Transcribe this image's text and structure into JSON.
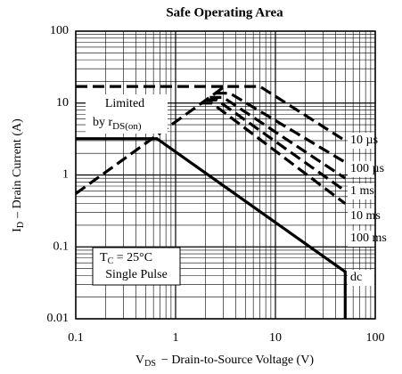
{
  "chart_data": {
    "type": "line",
    "title": "Safe Operating Area",
    "x_label": {
      "symbol": "V",
      "subscript": "DS",
      "text": "−  Drain-to-Source Voltage (V)"
    },
    "y_label": {
      "symbol": "I",
      "subscript": "D",
      "text": "– Drain Current (A)"
    },
    "log_x": true,
    "log_y": true,
    "grid": true,
    "color": "#000000",
    "xlim": [
      0.1,
      100
    ],
    "ylim": [
      0.01,
      100
    ],
    "xticks": [
      0.1,
      1,
      10,
      100
    ],
    "yticks": [
      0.01,
      0.1,
      1,
      10,
      100
    ],
    "x_minor_ticks": [
      0.2,
      0.3,
      0.4,
      0.5,
      0.6,
      0.7,
      0.8,
      0.9,
      2,
      3,
      4,
      5,
      6,
      7,
      8,
      9,
      20,
      30,
      40,
      50,
      60,
      70,
      80,
      90
    ],
    "y_minor_ticks": [
      0.02,
      0.03,
      0.04,
      0.05,
      0.06,
      0.07,
      0.08,
      0.09,
      0.2,
      0.3,
      0.4,
      0.5,
      0.6,
      0.7,
      0.8,
      0.9,
      2,
      3,
      4,
      5,
      6,
      7,
      8,
      9,
      20,
      30,
      40,
      50,
      60,
      70,
      80,
      90
    ],
    "annotations": {
      "limited": "Limited",
      "by": "by r",
      "by_sub": "DS(on)",
      "tc": "T",
      "tc_sub": "C",
      "tc_rest": " = 25°C",
      "pulse": "Single Pulse"
    },
    "pulse_limit": {
      "x": [
        0.1,
        3.1
      ],
      "values": [
        17,
        17
      ]
    },
    "series": [
      {
        "name": "10 µs",
        "style": "dashed",
        "x": [
          0.1,
          3.1,
          7,
          50
        ],
        "values": [
          0.55,
          17,
          17,
          3
        ]
      },
      {
        "name": "100 µs",
        "style": "dashed",
        "x": [
          2.5,
          3.5,
          50
        ],
        "values": [
          13.7,
          13.7,
          1.5
        ]
      },
      {
        "name": "1 ms",
        "style": "dashed",
        "x": [
          2.2,
          3,
          50
        ],
        "values": [
          12,
          12,
          0.9
        ]
      },
      {
        "name": "10 ms",
        "style": "dashed",
        "x": [
          2,
          2.6,
          50
        ],
        "values": [
          11,
          11,
          0.6
        ]
      },
      {
        "name": "100 ms",
        "style": "dashed",
        "x": [
          1.8,
          2.3,
          50
        ],
        "values": [
          10,
          10,
          0.4
        ]
      },
      {
        "name": "dc",
        "style": "solid",
        "x": [
          0.1,
          0.65,
          50,
          50
        ],
        "values": [
          3.2,
          3.2,
          0.045,
          0.01
        ]
      }
    ]
  }
}
